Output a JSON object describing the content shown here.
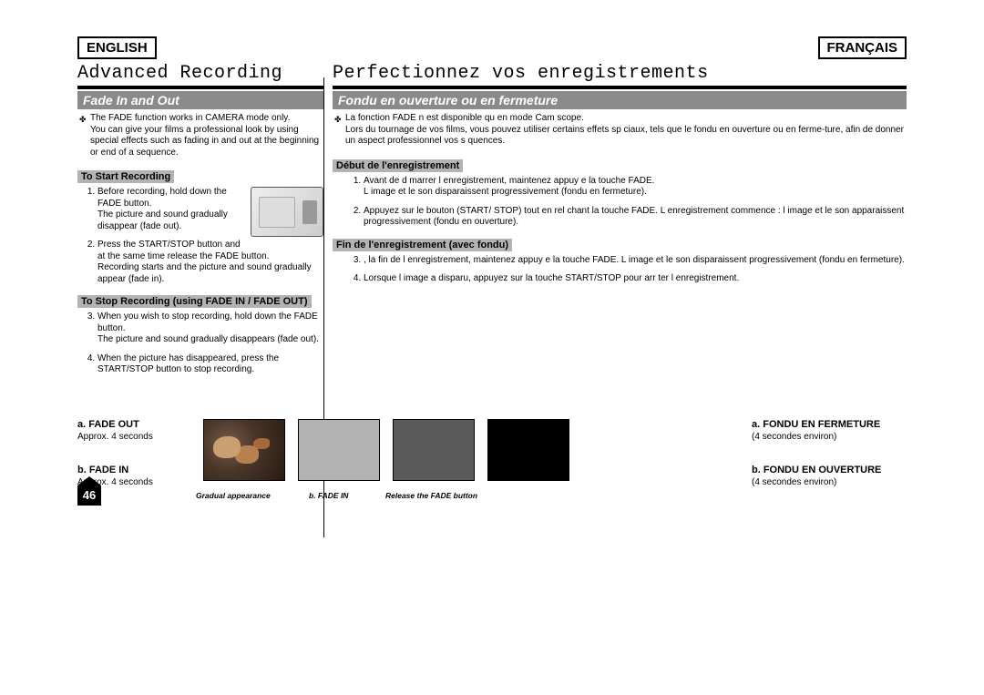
{
  "left": {
    "lang": "ENGLISH",
    "chapter": "Advanced Recording",
    "section": "Fade In and Out",
    "intro": "The FADE function works in CAMERA mode only.\nYou can give your films a professional look by using special effects such as fading in and out at the beginning or end of a sequence.",
    "sub1": "To Start Recording",
    "item1": "Before recording, hold down the FADE button.\nThe picture and sound gradually disappear (fade out).",
    "item2": "Press the START/STOP button and at the same time release the FADE button.\nRecording starts and the picture and sound gradually appear (fade in).",
    "sub2": "To Stop Recording (using FADE IN / FADE OUT)",
    "item3": "When you wish to stop recording, hold down the FADE button.\nThe picture and sound gradually disappears (fade out).",
    "item4": "When the picture has disappeared, press the START/STOP button to stop recording.",
    "fadeOutLabel": "a. FADE OUT",
    "fadeOutSub": "Approx. 4 seconds",
    "fadeInLabel": "b. FADE IN",
    "fadeInSub": "Approx. 4 seconds"
  },
  "right": {
    "lang": "FRANÇAIS",
    "chapter": "Perfectionnez vos enregistrements",
    "section": "Fondu en ouverture ou en fermeture",
    "intro": "La fonction FADE n est disponible qu en mode Cam scope.\nLors du tournage de vos films, vous pouvez utiliser certains effets sp ciaux, tels que le fondu en ouverture ou en ferme-ture, afin de donner un aspect professionnel   vos s quences.",
    "sub1": "Début de l'enregistrement",
    "item1": "Avant de d marrer l enregistrement, maintenez appuy e la touche FADE.\nL image et le son disparaissent progressivement (fondu en fermeture).",
    "item2": "Appuyez sur le bouton (START/ STOP) tout en rel chant la touche FADE. L enregistrement commence : l image et le son apparaissent progressivement (fondu en ouverture).",
    "sub2": "Fin de l'enregistrement (avec fondu)",
    "item3": ", la fin de l enregistrement, maintenez appuy e la touche FADE. L image et le son disparaissent progressivement (fondu en fermeture).",
    "item4": "Lorsque l image a disparu, appuyez sur la touche START/STOP pour arr ter l enregistrement.",
    "fadeOutLabel": "a. FONDU EN FERMETURE",
    "fadeOutSub": "(4 secondes environ)",
    "fadeInLabel": "b. FONDU EN OUVERTURE",
    "fadeInSub": "(4 secondes environ)"
  },
  "captions": {
    "c1": "Gradual appearance",
    "c2": "b. FADE IN",
    "c3": "Release the FADE button"
  },
  "pageNumber": "46",
  "fadeSequence": {
    "frames": [
      "photo",
      "gray",
      "dark",
      "black"
    ],
    "frameColors": {
      "gray": "#b3b3b3",
      "dark": "#5a5a5a",
      "black": "#000000"
    }
  }
}
